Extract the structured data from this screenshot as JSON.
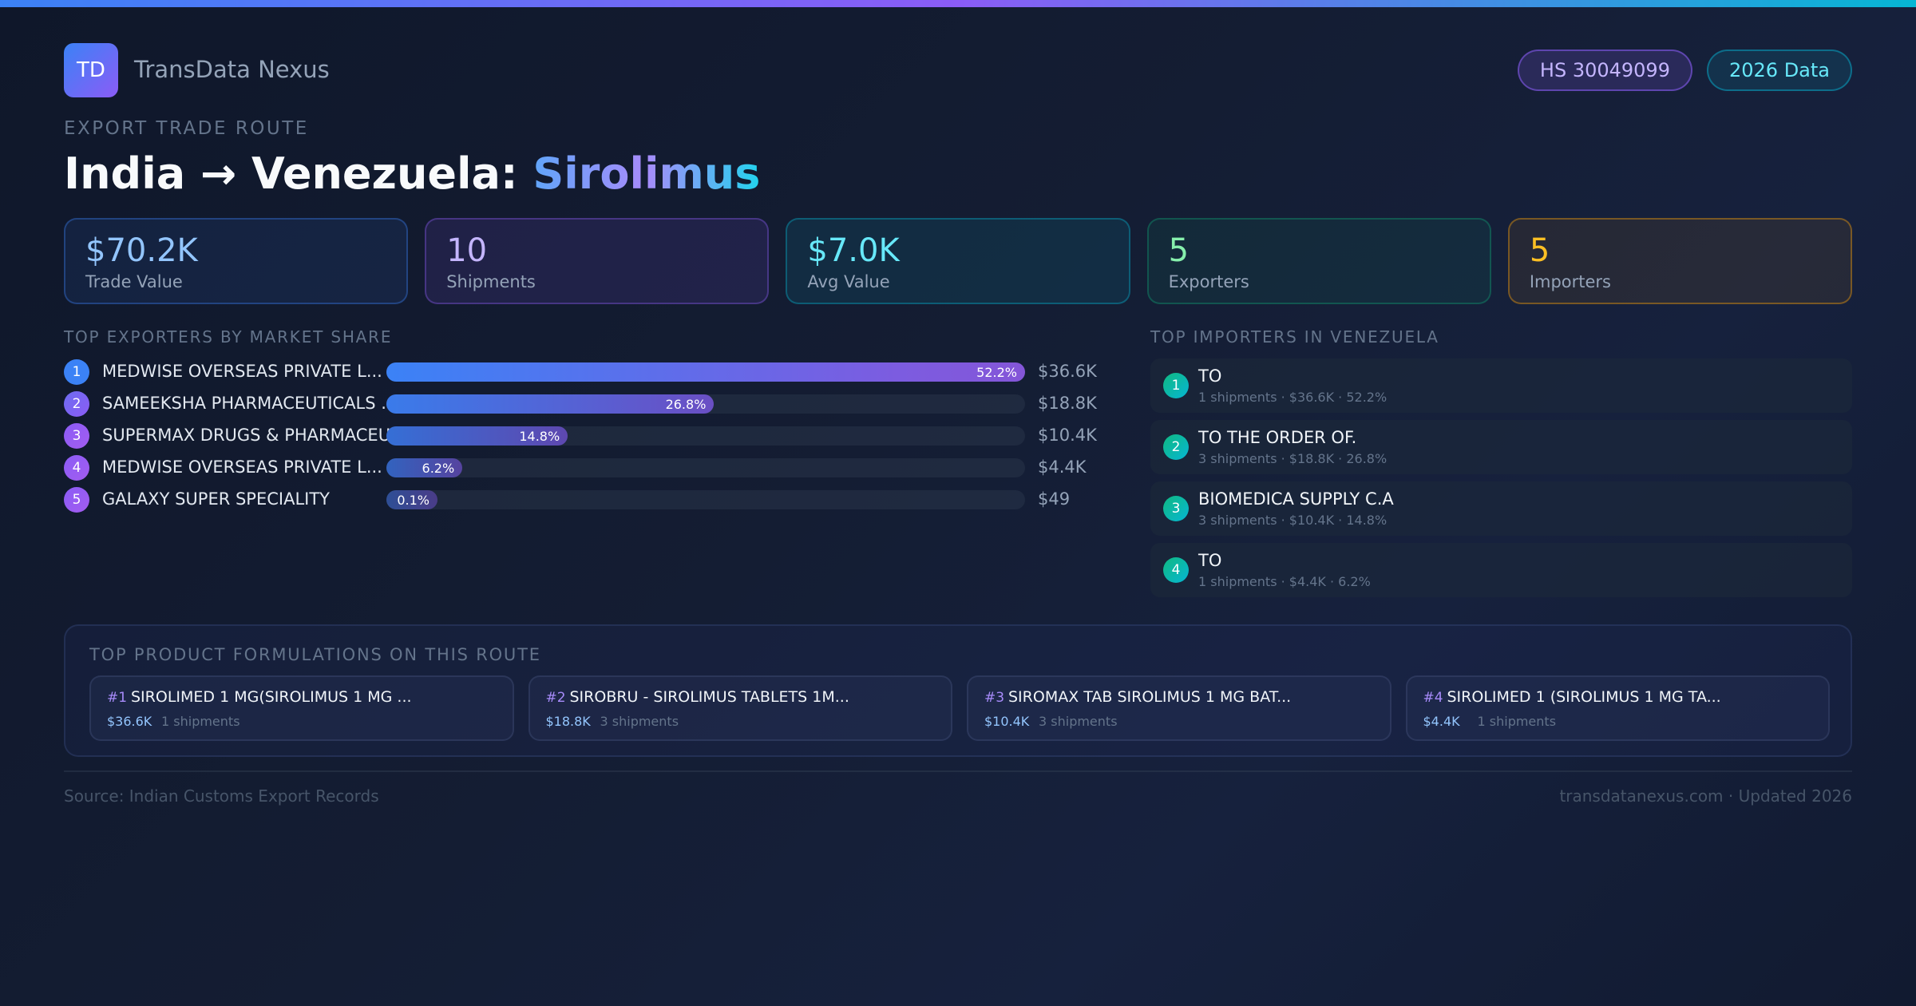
{
  "header": {
    "logo_text": "TD",
    "brand": "TransData Nexus",
    "badges": {
      "hs_code": "HS 30049099",
      "data_year": "2026 Data"
    }
  },
  "route": {
    "eyebrow": "EXPORT TRADE ROUTE",
    "title_prefix": "India → Venezuela: ",
    "product": "Sirolimus"
  },
  "stats": [
    {
      "value": "$70.2K",
      "label": "Trade Value"
    },
    {
      "value": "10",
      "label": "Shipments"
    },
    {
      "value": "$7.0K",
      "label": "Avg Value"
    },
    {
      "value": "5",
      "label": "Exporters"
    },
    {
      "value": "5",
      "label": "Importers"
    }
  ],
  "exporters": {
    "title": "TOP EXPORTERS BY MARKET SHARE",
    "items": [
      {
        "rank": "1",
        "name": "MEDWISE OVERSEAS PRIVATE L...",
        "share": "52.2%",
        "value": "$36.6K",
        "bar_pct": 100
      },
      {
        "rank": "2",
        "name": "SAMEEKSHA PHARMACEUTICALS ...",
        "share": "26.8%",
        "value": "$18.8K",
        "bar_pct": 51.3
      },
      {
        "rank": "3",
        "name": "SUPERMAX DRUGS & PHARMACEU...",
        "share": "14.8%",
        "value": "$10.4K",
        "bar_pct": 28.4
      },
      {
        "rank": "4",
        "name": "MEDWISE OVERSEAS PRIVATE L...",
        "share": "6.2%",
        "value": "$4.4K",
        "bar_pct": 11.9
      },
      {
        "rank": "5",
        "name": "GALAXY SUPER SPECIALITY",
        "share": "0.1%",
        "value": "$49",
        "bar_pct": 0.2
      }
    ]
  },
  "importers": {
    "title": "TOP IMPORTERS IN VENEZUELA",
    "items": [
      {
        "rank": "1",
        "name": "TO",
        "meta": "1 shipments · $36.6K · 52.2%"
      },
      {
        "rank": "2",
        "name": "TO THE ORDER OF.",
        "meta": "3 shipments · $18.8K · 26.8%"
      },
      {
        "rank": "3",
        "name": "BIOMEDICA SUPPLY C.A",
        "meta": "3 shipments · $10.4K · 14.8%"
      },
      {
        "rank": "4",
        "name": "TO",
        "meta": "1 shipments · $4.4K · 6.2%"
      }
    ]
  },
  "products": {
    "title": "TOP PRODUCT FORMULATIONS ON THIS ROUTE",
    "items": [
      {
        "rank": "#1",
        "name": "SIROLIMED 1 MG(SIROLIMUS 1 MG ...",
        "value": "$36.6K",
        "shipments": "1 shipments"
      },
      {
        "rank": "#2",
        "name": "SIROBRU - SIROLIMUS TABLETS 1M...",
        "value": "$18.8K",
        "shipments": "3 shipments"
      },
      {
        "rank": "#3",
        "name": "SIROMAX TAB SIROLIMUS 1 MG BAT...",
        "value": "$10.4K",
        "shipments": "3 shipments"
      },
      {
        "rank": "#4",
        "name": "SIROLIMED 1 (SIROLIMUS 1 MG TA...",
        "value": "$4.4K",
        "shipments": "1 shipments"
      }
    ]
  },
  "footer": {
    "source": "Source: Indian Customs Export Records",
    "site": "transdatanexus.com · Updated 2026"
  },
  "colors": {
    "accent_blue": "#3b82f6",
    "accent_purple": "#8b5cf6",
    "accent_cyan": "#06b6d4",
    "accent_green": "#10b981",
    "accent_amber": "#fbbf24",
    "background": "#0f172a"
  }
}
